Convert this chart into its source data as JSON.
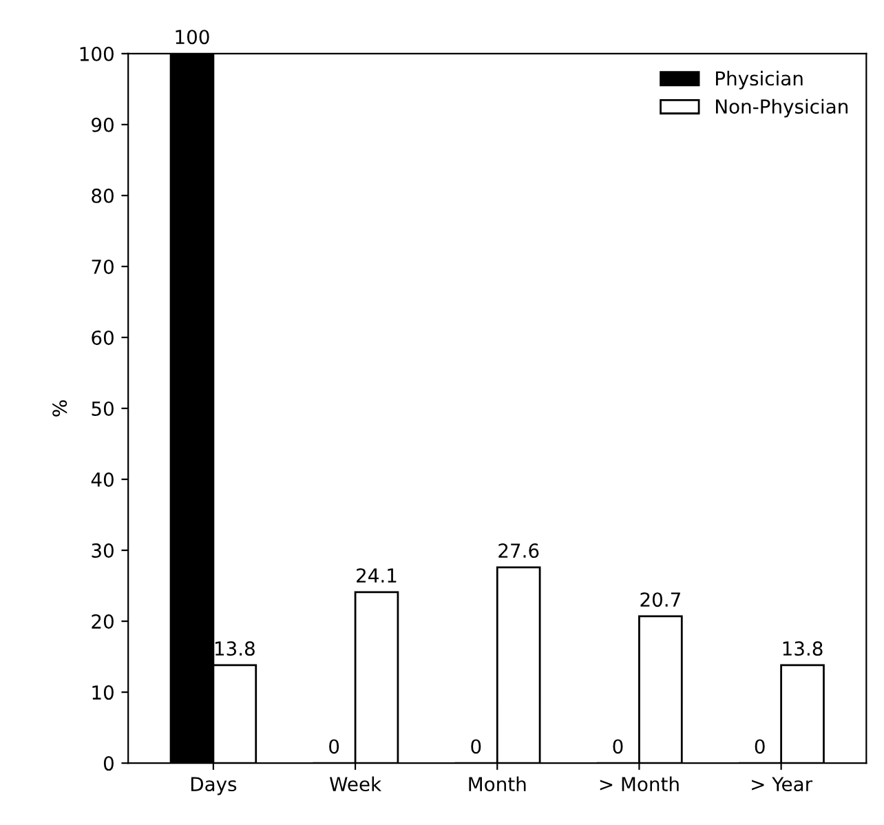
{
  "chart_data": {
    "type": "bar",
    "ylabel": "%",
    "categories": [
      "Days",
      "Week",
      "Month",
      "> Month",
      "> Year"
    ],
    "series": [
      {
        "name": "Physician",
        "color": "#000000",
        "values": [
          100,
          0,
          0,
          0,
          0
        ]
      },
      {
        "name": "Non-Physician",
        "color": "#ffffff",
        "values": [
          13.8,
          24.1,
          27.6,
          20.7,
          13.8
        ]
      }
    ],
    "data_labels": true,
    "ylim": [
      0,
      100
    ],
    "yticks": [
      0,
      10,
      20,
      30,
      40,
      50,
      60,
      70,
      80,
      90,
      100
    ],
    "grid": false,
    "legend": "top right"
  }
}
